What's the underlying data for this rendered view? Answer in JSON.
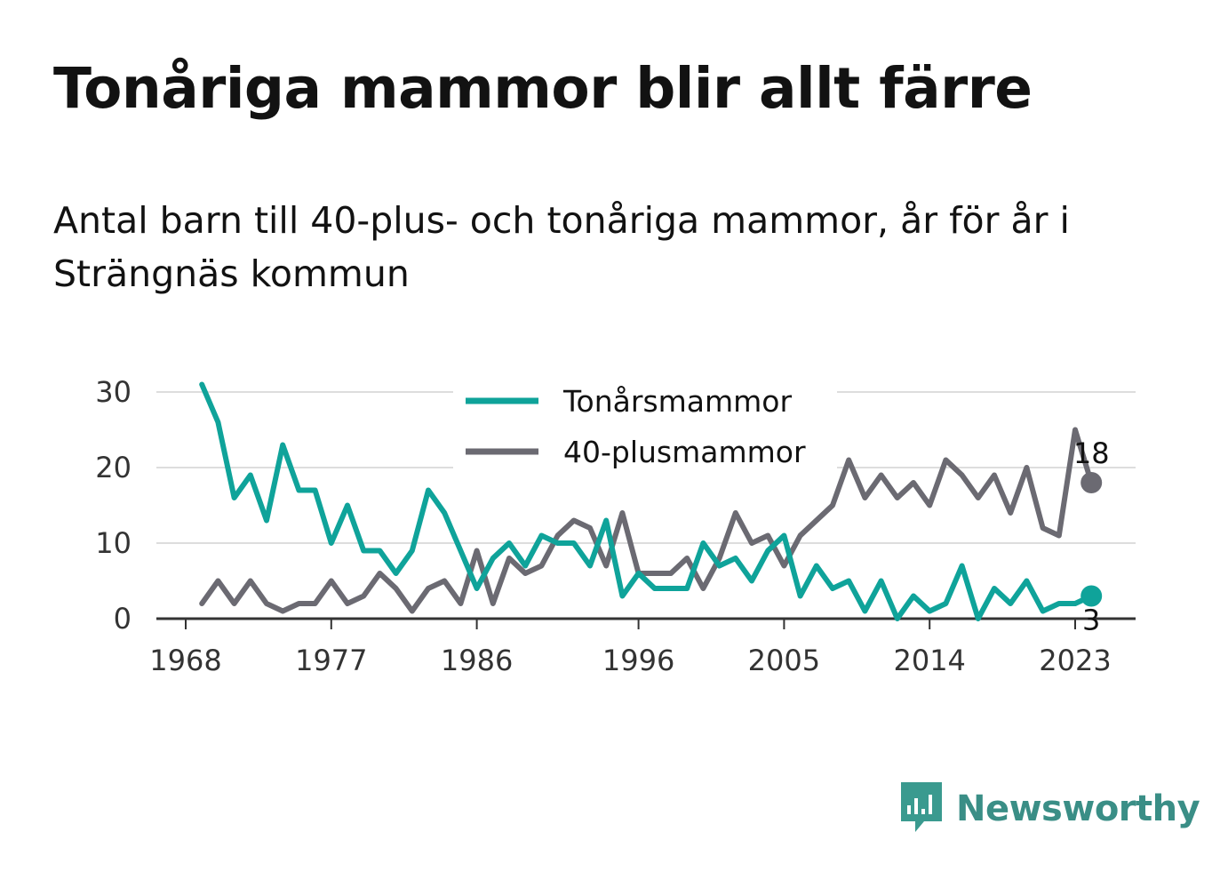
{
  "title": "Tonåriga mammor blir allt färre",
  "subtitle": "Antal barn till 40-plus- och tonåriga mammor, år för år i Strängnäs kommun",
  "brand": {
    "name": "Newsworthy",
    "icon": "newsworthy-logo-icon",
    "color": "#3a9a8f"
  },
  "chart_data": {
    "type": "line",
    "x": [
      1969,
      1970,
      1971,
      1972,
      1973,
      1974,
      1975,
      1976,
      1977,
      1978,
      1979,
      1980,
      1981,
      1982,
      1983,
      1984,
      1985,
      1986,
      1987,
      1988,
      1989,
      1990,
      1991,
      1992,
      1993,
      1994,
      1995,
      1996,
      1997,
      1998,
      1999,
      2000,
      2001,
      2002,
      2003,
      2004,
      2005,
      2006,
      2007,
      2008,
      2009,
      2010,
      2011,
      2012,
      2013,
      2014,
      2015,
      2016,
      2017,
      2018,
      2019,
      2020,
      2021,
      2022,
      2023,
      2024
    ],
    "series": [
      {
        "name": "Tonårsmammor",
        "color": "#0fa39a",
        "values": [
          31,
          26,
          16,
          19,
          13,
          23,
          17,
          17,
          10,
          15,
          9,
          9,
          6,
          9,
          17,
          14,
          9,
          4,
          8,
          10,
          7,
          11,
          10,
          10,
          7,
          13,
          3,
          6,
          4,
          4,
          4,
          10,
          7,
          8,
          5,
          9,
          11,
          3,
          7,
          4,
          5,
          1,
          5,
          0,
          3,
          1,
          2,
          7,
          0,
          4,
          2,
          5,
          1,
          2,
          2,
          3
        ]
      },
      {
        "name": "40-plusmammor",
        "color": "#6b6a72",
        "values": [
          2,
          5,
          2,
          5,
          2,
          1,
          2,
          2,
          5,
          2,
          3,
          6,
          4,
          1,
          4,
          5,
          2,
          9,
          2,
          8,
          6,
          7,
          11,
          13,
          12,
          7,
          14,
          6,
          6,
          6,
          8,
          4,
          8,
          14,
          10,
          11,
          7,
          11,
          13,
          15,
          21,
          16,
          19,
          16,
          18,
          15,
          21,
          19,
          16,
          19,
          14,
          20,
          12,
          11,
          25,
          18
        ]
      }
    ],
    "end_labels": [
      "3",
      "18"
    ],
    "x_ticks": [
      "1968",
      "1977",
      "1986",
      "1996",
      "2005",
      "2014",
      "2023"
    ],
    "y_ticks": [
      "0",
      "10",
      "20",
      "30"
    ],
    "ylim": [
      0,
      32
    ],
    "legend_placement": "top-center",
    "grid": true
  }
}
